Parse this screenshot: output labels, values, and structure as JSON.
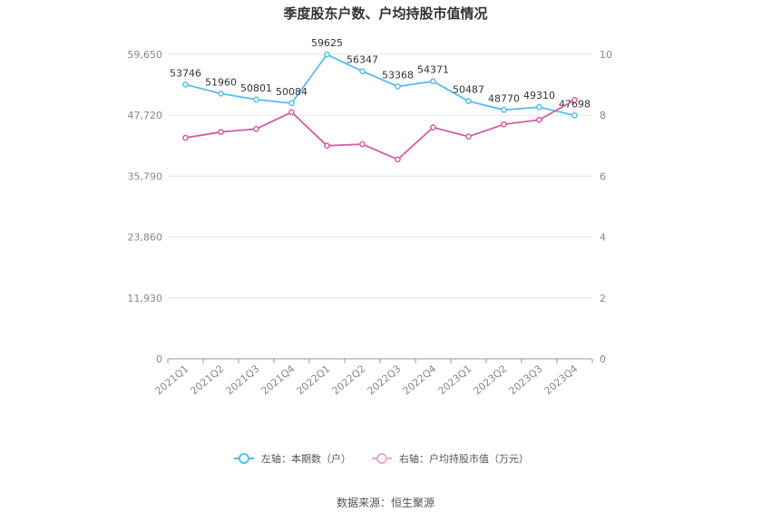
{
  "chart_data": {
    "type": "line",
    "title": "季度股东户数、户均持股市值情况",
    "categories": [
      "2021Q1",
      "2021Q2",
      "2021Q3",
      "2021Q4",
      "2022Q1",
      "2022Q2",
      "2022Q3",
      "2022Q4",
      "2023Q1",
      "2023Q2",
      "2023Q3",
      "2023Q4"
    ],
    "left_axis": {
      "ticks": [
        "0",
        "11,930",
        "23,860",
        "35,790",
        "47,720",
        "59,650"
      ],
      "ylim": [
        0,
        59650
      ]
    },
    "right_axis": {
      "ticks": [
        "0",
        "2",
        "4",
        "6",
        "8",
        "10"
      ],
      "ylim": [
        0,
        10
      ]
    },
    "series": [
      {
        "name": "左轴：本期数（户）",
        "axis": "left",
        "color": "#5bbcec",
        "values": [
          53746,
          51960,
          50801,
          50084,
          59625,
          56347,
          53368,
          54371,
          50487,
          48770,
          49310,
          47698
        ],
        "labels": [
          "53746",
          "51960",
          "50801",
          "50084",
          "59625",
          "56347",
          "53368",
          "54371",
          "50487",
          "48770",
          "49310",
          "47698"
        ]
      },
      {
        "name": "右轴：户均持股市值（万元）",
        "axis": "right",
        "color": "#d0609e",
        "values": [
          7.26,
          7.45,
          7.55,
          8.1,
          7.0,
          7.05,
          6.55,
          7.6,
          7.3,
          7.7,
          7.85,
          8.5
        ]
      }
    ],
    "grid": true,
    "legend": "bottom"
  },
  "source": "数据来源：恒生聚源"
}
